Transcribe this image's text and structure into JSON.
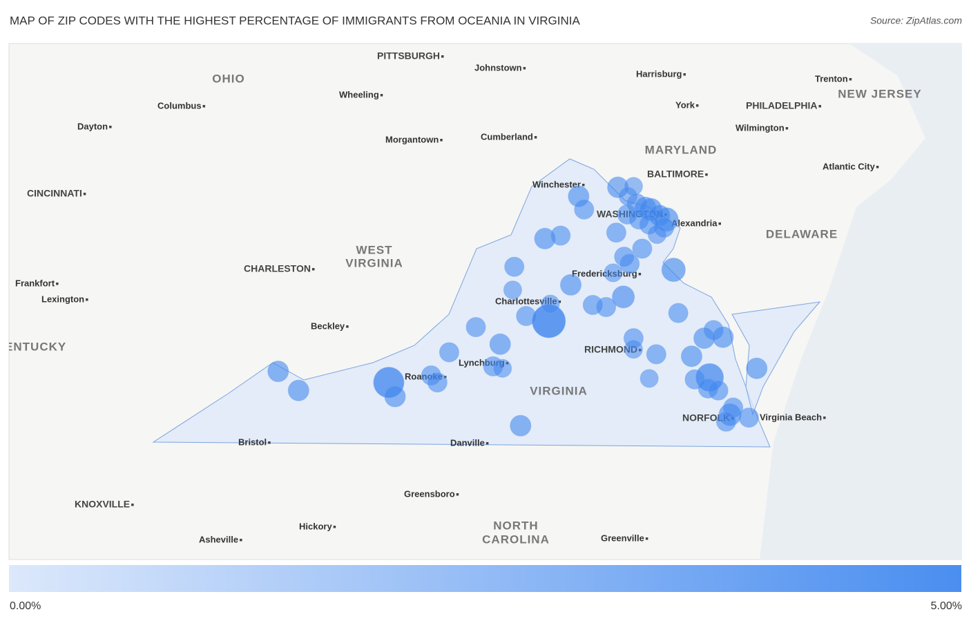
{
  "title": "MAP OF ZIP CODES WITH THE HIGHEST PERCENTAGE OF IMMIGRANTS FROM OCEANIA IN VIRGINIA",
  "source": "Source: ZipAtlas.com",
  "legend": {
    "min": {
      "value": 0,
      "label": "0.00%"
    },
    "max": {
      "value": 5,
      "label": "5.00%"
    }
  },
  "places": [
    "PITTSBURGH",
    "Johnstown",
    "OHIO",
    "Harrisburg",
    "Trenton",
    "NEW JERSEY",
    "Columbus",
    "Wheeling",
    "York",
    "PHILADELPHIA",
    "Dayton",
    "Wilmington",
    "Morgantown",
    "Cumberland",
    "MARYLAND",
    "BALTIMORE",
    "Atlantic City",
    "Winchester",
    "CINCINNATI",
    "WASHINGTON",
    "Alexandria",
    "DELAWARE",
    "WEST",
    "VIRGINIA",
    "CHARLESTON",
    "Frankfort",
    "Fredericksburg",
    "Lexington",
    "Charlottesville",
    "Beckley",
    "KENTUCKY",
    "RICHMOND",
    "Lynchburg",
    "Roanoke",
    "VIRGINIA",
    "NORFOLK",
    "Virginia Beach",
    "Bristol",
    "Danville",
    "Greensboro",
    "KNOXVILLE",
    "NORTH",
    "CAROLINA",
    "Hickory",
    "Asheville",
    "Greenville"
  ],
  "points": [
    {
      "lon": -82.06,
      "lat": 37.31,
      "value": 2.25
    },
    {
      "lon": -81.8,
      "lat": 37.12,
      "value": 2.25
    },
    {
      "lon": -80.65,
      "lat": 37.2,
      "value": 4.0
    },
    {
      "lon": -80.57,
      "lat": 37.06,
      "value": 2.25
    },
    {
      "lon": -80.11,
      "lat": 37.27,
      "value": 2.0
    },
    {
      "lon": -80.03,
      "lat": 37.2,
      "value": 2.0
    },
    {
      "lon": -79.88,
      "lat": 37.5,
      "value": 2.0
    },
    {
      "lon": -79.54,
      "lat": 37.75,
      "value": 2.0
    },
    {
      "lon": -79.23,
      "lat": 37.58,
      "value": 2.25
    },
    {
      "lon": -79.32,
      "lat": 37.36,
      "value": 2.0
    },
    {
      "lon": -79.2,
      "lat": 37.34,
      "value": 1.75
    },
    {
      "lon": -79.05,
      "lat": 38.35,
      "value": 2.0
    },
    {
      "lon": -79.07,
      "lat": 38.12,
      "value": 1.75
    },
    {
      "lon": -78.97,
      "lat": 36.77,
      "value": 2.25
    },
    {
      "lon": -78.9,
      "lat": 37.86,
      "value": 2.0
    },
    {
      "lon": -78.61,
      "lat": 37.81,
      "value": 4.5
    },
    {
      "lon": -78.59,
      "lat": 37.98,
      "value": 1.75
    },
    {
      "lon": -78.66,
      "lat": 38.63,
      "value": 2.25
    },
    {
      "lon": -78.46,
      "lat": 38.66,
      "value": 2.0
    },
    {
      "lon": -78.33,
      "lat": 38.17,
      "value": 2.25
    },
    {
      "lon": -78.23,
      "lat": 39.05,
      "value": 2.25
    },
    {
      "lon": -78.16,
      "lat": 38.92,
      "value": 2.0
    },
    {
      "lon": -78.05,
      "lat": 37.97,
      "value": 2.0
    },
    {
      "lon": -77.88,
      "lat": 37.95,
      "value": 2.0
    },
    {
      "lon": -77.73,
      "lat": 39.14,
      "value": 2.25
    },
    {
      "lon": -77.53,
      "lat": 39.15,
      "value": 1.75
    },
    {
      "lon": -77.75,
      "lat": 38.69,
      "value": 2.0
    },
    {
      "lon": -77.79,
      "lat": 38.29,
      "value": 1.75
    },
    {
      "lon": -77.66,
      "lat": 38.05,
      "value": 2.5
    },
    {
      "lon": -77.65,
      "lat": 38.45,
      "value": 2.0
    },
    {
      "lon": -77.58,
      "lat": 38.38,
      "value": 2.0
    },
    {
      "lon": -77.42,
      "lat": 38.53,
      "value": 2.0
    },
    {
      "lon": -77.53,
      "lat": 37.64,
      "value": 2.0
    },
    {
      "lon": -77.53,
      "lat": 37.53,
      "value": 1.75
    },
    {
      "lon": -77.24,
      "lat": 37.48,
      "value": 2.0
    },
    {
      "lon": -77.33,
      "lat": 37.24,
      "value": 1.75
    },
    {
      "lon": -77.02,
      "lat": 38.32,
      "value": 2.75
    },
    {
      "lon": -76.96,
      "lat": 37.89,
      "value": 2.0
    },
    {
      "lon": -76.79,
      "lat": 37.46,
      "value": 2.25
    },
    {
      "lon": -76.63,
      "lat": 37.64,
      "value": 2.25
    },
    {
      "lon": -76.51,
      "lat": 37.72,
      "value": 2.0
    },
    {
      "lon": -76.39,
      "lat": 37.65,
      "value": 2.25
    },
    {
      "lon": -76.75,
      "lat": 37.23,
      "value": 2.0
    },
    {
      "lon": -76.56,
      "lat": 37.25,
      "value": 3.5
    },
    {
      "lon": -76.58,
      "lat": 37.14,
      "value": 2.0
    },
    {
      "lon": -76.45,
      "lat": 37.12,
      "value": 2.0
    },
    {
      "lon": -75.96,
      "lat": 37.34,
      "value": 2.25
    },
    {
      "lon": -76.26,
      "lat": 36.95,
      "value": 2.0
    },
    {
      "lon": -76.3,
      "lat": 36.88,
      "value": 2.5
    },
    {
      "lon": -76.35,
      "lat": 36.81,
      "value": 2.0
    },
    {
      "lon": -76.06,
      "lat": 36.85,
      "value": 2.0
    },
    {
      "lon": -77.6,
      "lat": 39.05,
      "value": 1.75
    },
    {
      "lon": -77.49,
      "lat": 38.98,
      "value": 2.0
    },
    {
      "lon": -77.38,
      "lat": 38.94,
      "value": 2.25
    },
    {
      "lon": -77.31,
      "lat": 38.92,
      "value": 2.5
    },
    {
      "lon": -77.2,
      "lat": 38.86,
      "value": 2.25
    },
    {
      "lon": -77.11,
      "lat": 38.82,
      "value": 2.75
    },
    {
      "lon": -77.14,
      "lat": 38.74,
      "value": 2.0
    },
    {
      "lon": -77.23,
      "lat": 38.67,
      "value": 1.75
    },
    {
      "lon": -77.61,
      "lat": 38.87,
      "value": 2.0
    },
    {
      "lon": -77.46,
      "lat": 38.82,
      "value": 2.0
    },
    {
      "lon": -77.33,
      "lat": 38.77,
      "value": 2.0
    }
  ]
}
